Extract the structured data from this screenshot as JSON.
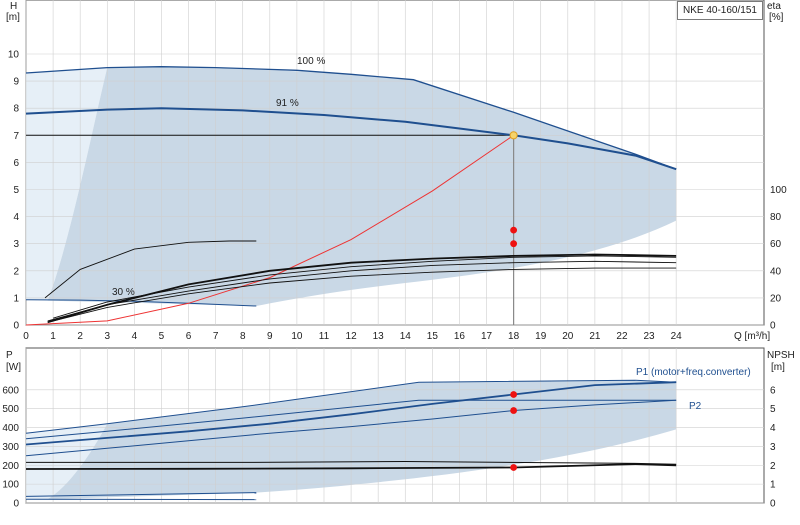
{
  "chart_data": [
    {
      "type": "line",
      "title": "NKE 40-160/151",
      "xlabel": "Q [m³/h]",
      "ylabel": "H\n[m]",
      "y2label": "eta\n[%]",
      "xlim": [
        0,
        25.5
      ],
      "ylim": [
        0,
        11.5
      ],
      "y2lim": [
        0,
        100
      ],
      "x_ticks": [
        0,
        1,
        2,
        3,
        4,
        5,
        6,
        7,
        8,
        9,
        10,
        11,
        12,
        13,
        14,
        15,
        16,
        17,
        18,
        19,
        20,
        21,
        22,
        23,
        24
      ],
      "y_ticks": [
        0,
        1,
        2,
        3,
        4,
        5,
        6,
        7,
        8,
        9,
        10
      ],
      "y2_ticks": [
        0,
        20,
        40,
        60,
        80,
        100
      ],
      "grid": true,
      "colors": {
        "curve": "#1f4f8f",
        "region": "#c9d8e6",
        "light": "#e6eff7",
        "system": "#ee3333",
        "eta": "#111111",
        "point": "#ee1111",
        "duty": "#f6d36a"
      },
      "annotations": [
        "100 %",
        "91 %",
        "30 %"
      ],
      "duty_point": {
        "x": 18,
        "y": 7.0
      },
      "series": [
        {
          "role": "head-max",
          "label": "100 %",
          "x": [
            0,
            3,
            5,
            7,
            10,
            12,
            14.3,
            18,
            22.5,
            24
          ],
          "y": [
            9.3,
            9.5,
            9.53,
            9.5,
            9.4,
            9.25,
            9.05,
            7.85,
            6.3,
            5.75
          ]
        },
        {
          "role": "head-duty",
          "label": "91 %",
          "x": [
            0,
            3,
            5,
            8,
            11,
            14,
            16,
            18,
            20,
            22.5,
            24
          ],
          "y": [
            7.8,
            7.95,
            8.0,
            7.92,
            7.75,
            7.5,
            7.25,
            7.0,
            6.7,
            6.25,
            5.75
          ]
        },
        {
          "role": "head-min",
          "label": "30 %",
          "x": [
            0,
            2,
            4,
            6,
            8.5
          ],
          "y": [
            0.93,
            0.92,
            0.88,
            0.8,
            0.7
          ]
        },
        {
          "role": "system",
          "x": [
            0,
            3,
            6,
            9,
            12,
            15,
            18
          ],
          "y": [
            0,
            0.15,
            0.8,
            1.75,
            3.15,
            4.95,
            7.0
          ]
        },
        {
          "role": "eta",
          "x": [
            0.8,
            3,
            6,
            9,
            12,
            15,
            18,
            21,
            24
          ],
          "y": [
            2,
            13,
            23,
            31,
            36,
            39,
            41,
            42,
            42
          ]
        },
        {
          "role": "eta",
          "x": [
            0.8,
            3,
            6,
            9,
            12,
            15,
            18,
            21,
            24
          ],
          "y": [
            3,
            15,
            25,
            34,
            40,
            44,
            46,
            47,
            46
          ]
        },
        {
          "role": "eta",
          "x": [
            1,
            3,
            6,
            9,
            12,
            15,
            18,
            21,
            24
          ],
          "y": [
            5,
            17,
            28,
            37,
            43,
            47,
            50,
            51,
            50
          ]
        },
        {
          "role": "eta",
          "x": [
            0.8,
            3,
            6,
            9,
            12,
            15,
            18,
            21,
            24
          ],
          "y": [
            2,
            15,
            30,
            40,
            46,
            49,
            51,
            52,
            51
          ]
        },
        {
          "role": "eta",
          "x": [
            0.7,
            2,
            4,
            6,
            7.5,
            8.5
          ],
          "y": [
            20,
            41,
            56,
            61,
            62,
            62
          ]
        }
      ],
      "markers": [
        {
          "x": 18,
          "y": 3.5,
          "color": "red"
        },
        {
          "x": 18,
          "y": 3.0,
          "color": "red"
        }
      ]
    },
    {
      "type": "line",
      "xlabel": "",
      "ylabel": "P\n[W]",
      "y2label": "NPSH\n[m]",
      "xlim": [
        0,
        25.5
      ],
      "ylim": [
        0,
        700
      ],
      "y2lim": [
        0,
        7
      ],
      "y_ticks": [
        0,
        100,
        200,
        300,
        400,
        500,
        600
      ],
      "y2_ticks": [
        0,
        1,
        2,
        3,
        4,
        5,
        6
      ],
      "grid": true,
      "legend_labels": [
        "P1 (motor+freq.converter)",
        "P2"
      ],
      "series": [
        {
          "label": "P1 (motor+freq.converter)",
          "x": [
            0,
            3,
            8,
            14.5,
            22.5,
            24
          ],
          "y": [
            370,
            420,
            510,
            640,
            650,
            640
          ]
        },
        {
          "x": [
            0,
            3,
            6,
            9,
            12,
            15,
            18,
            21,
            24
          ],
          "y": [
            310,
            345,
            380,
            420,
            470,
            525,
            575,
            625,
            640
          ]
        },
        {
          "x": [
            0,
            3,
            8,
            14.5,
            22.5,
            24
          ],
          "y": [
            340,
            380,
            450,
            545,
            545,
            545
          ]
        },
        {
          "label": "P2",
          "x": [
            0,
            3,
            6,
            9,
            12,
            15,
            18,
            21,
            24
          ],
          "y": [
            250,
            290,
            330,
            370,
            405,
            445,
            490,
            520,
            545
          ]
        },
        {
          "x": [
            0,
            8,
            14,
            22.5,
            24
          ],
          "y": [
            215,
            215,
            220,
            210,
            205
          ]
        },
        {
          "x": [
            0,
            6,
            12,
            18,
            22.5,
            24
          ],
          "y": [
            180,
            181,
            184,
            188,
            206,
            200
          ]
        },
        {
          "x": [
            0,
            8.5
          ],
          "y": [
            35,
            55
          ]
        },
        {
          "x": [
            0,
            8.5
          ],
          "y": [
            20,
            18
          ]
        }
      ],
      "markers": [
        {
          "x": 18,
          "y": 575,
          "color": "red"
        },
        {
          "x": 18,
          "y": 490,
          "color": "red"
        },
        {
          "x": 18,
          "y": 188,
          "color": "red"
        }
      ]
    }
  ]
}
